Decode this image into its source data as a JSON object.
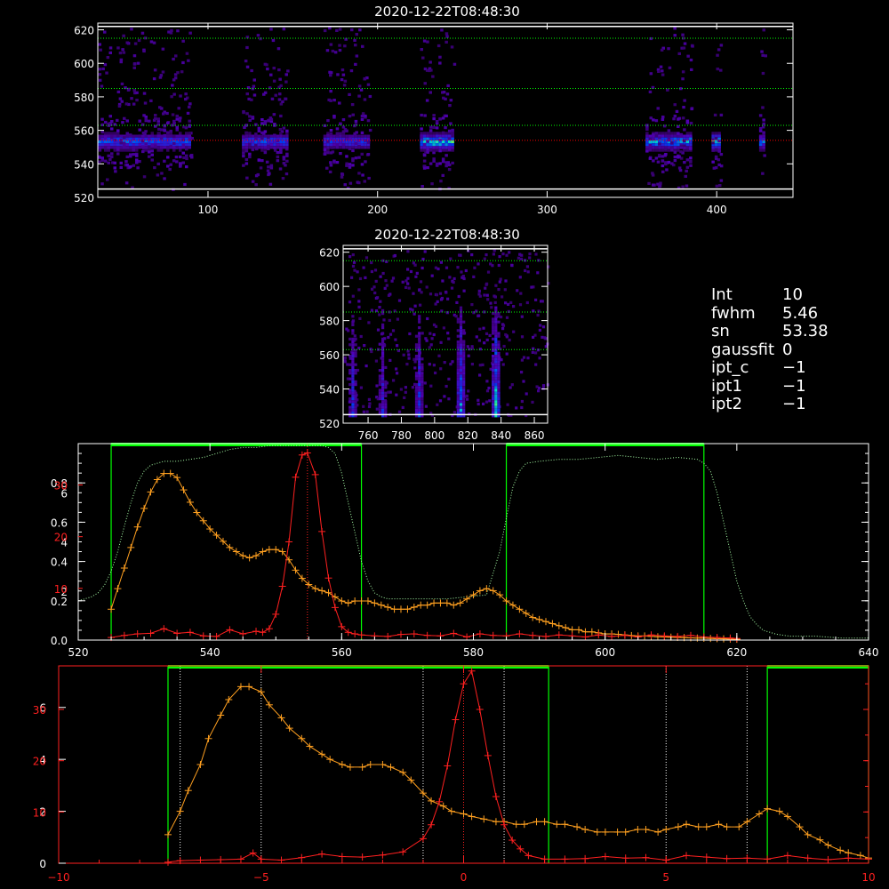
{
  "colors": {
    "background": "#000000",
    "axis": "#ffffff",
    "red": "#ff2020",
    "orange": "#ffa020",
    "green": "#00ff00",
    "light_green": "#a8ffa8"
  },
  "info_panel": {
    "items": [
      {
        "key": "Int",
        "value": "10"
      },
      {
        "key": "fwhm",
        "value": "5.46"
      },
      {
        "key": "sn",
        "value": "53.38"
      },
      {
        "key": "gaussfit",
        "value": "0"
      },
      {
        "key": "ipt_c",
        "value": "−1"
      },
      {
        "key": "ipt1",
        "value": "−1"
      },
      {
        "key": "ipt2",
        "value": "−1"
      }
    ]
  },
  "chart_data": [
    {
      "id": "image-top",
      "type": "heatmap",
      "title": "2020-12-22T08:48:30",
      "xlim": [
        35,
        445
      ],
      "ylim": [
        520,
        624
      ],
      "x_ticks": [
        100,
        200,
        300,
        400
      ],
      "y_ticks": [
        520,
        540,
        560,
        580,
        600,
        620
      ],
      "hlines": [
        {
          "y": 622,
          "color": "#ffffff",
          "style": "solid"
        },
        {
          "y": 525,
          "color": "#ffffff",
          "style": "solid"
        },
        {
          "y": 615,
          "color": "#00ff00",
          "style": "dotted"
        },
        {
          "y": 585,
          "color": "#00ff00",
          "style": "dotted"
        },
        {
          "y": 563,
          "color": "#00ff00",
          "style": "dotted"
        },
        {
          "y": 554,
          "color": "#ff0000",
          "style": "dotted"
        }
      ],
      "segments": [
        {
          "x": [
            35,
            90
          ],
          "intensity": 0.6
        },
        {
          "x": [
            120,
            147
          ],
          "intensity": 0.55
        },
        {
          "x": [
            168,
            195
          ],
          "intensity": 0.5
        },
        {
          "x": [
            225,
            245
          ],
          "intensity": 0.9
        },
        {
          "x": [
            358,
            385
          ],
          "intensity": 0.75
        },
        {
          "x": [
            397,
            402
          ],
          "intensity": 0.95
        },
        {
          "x": [
            425,
            428
          ],
          "intensity": 0.7
        }
      ]
    },
    {
      "id": "image-mid",
      "type": "heatmap",
      "title": "2020-12-22T08:48:30",
      "xlim": [
        745,
        868
      ],
      "ylim": [
        520,
        624
      ],
      "x_ticks": [
        760,
        780,
        800,
        820,
        840,
        860
      ],
      "y_ticks": [
        520,
        540,
        560,
        580,
        600,
        620
      ],
      "hlines": [
        {
          "y": 622,
          "color": "#ffffff",
          "style": "solid"
        },
        {
          "y": 525,
          "color": "#ffffff",
          "style": "solid"
        },
        {
          "y": 615,
          "color": "#00ff00",
          "style": "dotted"
        },
        {
          "y": 585,
          "color": "#00ff00",
          "style": "dotted"
        },
        {
          "y": 563,
          "color": "#00ff00",
          "style": "dotted"
        }
      ],
      "columns": [
        {
          "x": 750,
          "intensity": 0.55
        },
        {
          "x": 768,
          "intensity": 0.5
        },
        {
          "x": 790,
          "intensity": 0.6
        },
        {
          "x": 815,
          "intensity": 0.8
        },
        {
          "x": 836,
          "intensity": 0.95
        }
      ]
    },
    {
      "id": "spectrum-top",
      "type": "line",
      "xlim": [
        520,
        640
      ],
      "x_ticks": [
        520,
        540,
        560,
        580,
        600,
        620,
        640
      ],
      "y_ticks_white": [
        0.0,
        0.2,
        0.4,
        0.6,
        0.8
      ],
      "y_ticks_white_labels": [
        "0.0",
        "0.2",
        "0.4",
        "0.6",
        "0.8"
      ],
      "y_ticks_orange_labels": [
        "2",
        "4",
        "6"
      ],
      "y_ticks_orange_values": [
        2,
        4,
        6
      ],
      "y_ticks_red_labels": [
        "10",
        "20",
        "30"
      ],
      "y_ticks_red_values": [
        10,
        20,
        30
      ],
      "green_regions": [
        [
          525,
          563
        ],
        [
          585,
          615
        ]
      ],
      "red_dotted_x": 554.8,
      "series": [
        {
          "color": "orange",
          "x": [
            525,
            526,
            527,
            528,
            529,
            530,
            531,
            532,
            533,
            534,
            535,
            536,
            537,
            538,
            539,
            540,
            541,
            542,
            543,
            544,
            545,
            546,
            547,
            548,
            549,
            550,
            551,
            552,
            553,
            554,
            555,
            556,
            557,
            558,
            559,
            560,
            561,
            562,
            563,
            564,
            565,
            566,
            567,
            568,
            569,
            570,
            571,
            572,
            573,
            574,
            575,
            576,
            577,
            578,
            579,
            580,
            581,
            582,
            583,
            584,
            585,
            586,
            587,
            588,
            589,
            590,
            591,
            592,
            593,
            594,
            595,
            596,
            597,
            598,
            599,
            600,
            601,
            602,
            603,
            604,
            605,
            606,
            607,
            608,
            609,
            610,
            611,
            612,
            613,
            614,
            615,
            616,
            617,
            618,
            619,
            620
          ],
          "y": [
            0.15,
            0.25,
            0.35,
            0.45,
            0.55,
            0.64,
            0.72,
            0.78,
            0.81,
            0.81,
            0.79,
            0.73,
            0.67,
            0.62,
            0.58,
            0.54,
            0.51,
            0.48,
            0.45,
            0.43,
            0.41,
            0.4,
            0.41,
            0.43,
            0.44,
            0.44,
            0.43,
            0.39,
            0.34,
            0.3,
            0.27,
            0.25,
            0.24,
            0.23,
            0.21,
            0.19,
            0.18,
            0.19,
            0.19,
            0.19,
            0.18,
            0.17,
            0.16,
            0.15,
            0.15,
            0.15,
            0.16,
            0.17,
            0.17,
            0.18,
            0.18,
            0.18,
            0.17,
            0.18,
            0.2,
            0.22,
            0.24,
            0.25,
            0.24,
            0.22,
            0.19,
            0.17,
            0.15,
            0.13,
            0.11,
            0.1,
            0.09,
            0.08,
            0.07,
            0.06,
            0.05,
            0.05,
            0.04,
            0.04,
            0.035,
            0.03,
            0.03,
            0.028,
            0.025,
            0.022,
            0.02,
            0.02,
            0.018,
            0.016,
            0.015,
            0.014,
            0.013,
            0.012,
            0.011,
            0.01,
            0.009,
            0.008,
            0.007,
            0.006,
            0.005,
            0.004
          ]
        },
        {
          "color": "red",
          "x": [
            525,
            527,
            529,
            531,
            533,
            535,
            537,
            539,
            541,
            543,
            545,
            547,
            548,
            549,
            550,
            551,
            552,
            553,
            554,
            554.8,
            556,
            557,
            558,
            559,
            560,
            561,
            562,
            563,
            565,
            567,
            569,
            571,
            573,
            575,
            577,
            579,
            581,
            583,
            585,
            587,
            589,
            591,
            593,
            595,
            597,
            599,
            601,
            603,
            605,
            607,
            609,
            611,
            613,
            615,
            617,
            619,
            620
          ],
          "y": [
            0.5,
            0.9,
            1.2,
            1.3,
            2.2,
            1.3,
            1.5,
            0.8,
            0.7,
            2.0,
            1.2,
            1.7,
            1.5,
            2.2,
            5.0,
            10.4,
            19.0,
            31.5,
            35.8,
            36.2,
            32.0,
            21.0,
            12.0,
            6.3,
            2.6,
            1.5,
            1.2,
            1.0,
            0.8,
            0.7,
            1.1,
            1.2,
            0.9,
            0.8,
            1.3,
            0.6,
            1.2,
            0.9,
            0.8,
            1.2,
            0.9,
            0.7,
            1.0,
            0.8,
            0.6,
            1.0,
            0.7,
            0.9,
            0.6,
            1.0,
            0.8,
            0.7,
            0.9,
            0.6,
            0.5,
            0.4,
            0.3
          ]
        },
        {
          "color": "light_green",
          "style": "dotted",
          "x": [
            520,
            522,
            523,
            524,
            525,
            526,
            527,
            528,
            529,
            530,
            531,
            532,
            533,
            534,
            535,
            537,
            539,
            541,
            543,
            545,
            547,
            549,
            551,
            553,
            555,
            557,
            558,
            559,
            560,
            561,
            562,
            563,
            564,
            565,
            566,
            567,
            568,
            570,
            573,
            576,
            579,
            582,
            584,
            585,
            586,
            587,
            588,
            590,
            593,
            596,
            599,
            602,
            605,
            608,
            611,
            614,
            615,
            616,
            617,
            618,
            619,
            620,
            621,
            622,
            623,
            624,
            626,
            628,
            632,
            636,
            640
          ],
          "y": [
            0.2,
            0.22,
            0.24,
            0.28,
            0.35,
            0.45,
            0.58,
            0.7,
            0.8,
            0.86,
            0.89,
            0.9,
            0.91,
            0.91,
            0.91,
            0.92,
            0.93,
            0.95,
            0.97,
            0.98,
            0.98,
            0.99,
            0.99,
            0.99,
            0.99,
            0.99,
            0.98,
            0.95,
            0.85,
            0.7,
            0.55,
            0.4,
            0.3,
            0.24,
            0.22,
            0.21,
            0.21,
            0.21,
            0.21,
            0.21,
            0.22,
            0.23,
            0.45,
            0.62,
            0.78,
            0.86,
            0.9,
            0.91,
            0.92,
            0.92,
            0.93,
            0.94,
            0.93,
            0.92,
            0.93,
            0.92,
            0.9,
            0.86,
            0.75,
            0.6,
            0.45,
            0.3,
            0.2,
            0.12,
            0.08,
            0.05,
            0.03,
            0.02,
            0.02,
            0.01,
            0.01
          ]
        }
      ]
    },
    {
      "id": "spectrum-bottom",
      "type": "line",
      "xlim": [
        -10,
        10
      ],
      "x_ticks": [
        -10,
        -5,
        0,
        5,
        10
      ],
      "x_tick_labels": [
        "−10",
        "−5",
        "0",
        "5",
        "10"
      ],
      "y_ticks_white_labels": [
        "0",
        "2",
        "4",
        "6"
      ],
      "y_ticks_white_values": [
        0,
        2,
        4,
        6
      ],
      "y_ticks_red_labels": [
        "10",
        "20",
        "30"
      ],
      "y_ticks_red_values": [
        10,
        20,
        30
      ],
      "green_regions": [
        [
          -7.3,
          2.1
        ],
        [
          7.5,
          10.0
        ]
      ],
      "white_dotted_x": [
        -7.0,
        -5.0,
        -1.0,
        1.0,
        5.0,
        7.0
      ],
      "red_dotted_x": 0.0,
      "series": [
        {
          "color": "orange",
          "x": [
            -7.3,
            -7.0,
            -6.8,
            -6.5,
            -6.3,
            -6.0,
            -5.8,
            -5.5,
            -5.3,
            -5.0,
            -4.8,
            -4.5,
            -4.3,
            -4.0,
            -3.8,
            -3.5,
            -3.3,
            -3.0,
            -2.8,
            -2.5,
            -2.3,
            -2.0,
            -1.8,
            -1.5,
            -1.3,
            -1.0,
            -0.8,
            -0.5,
            -0.3,
            0.0,
            0.2,
            0.5,
            0.8,
            1.0,
            1.3,
            1.5,
            1.8,
            2.0,
            2.3,
            2.5,
            2.8,
            3.0,
            3.3,
            3.5,
            3.8,
            4.0,
            4.3,
            4.5,
            4.8,
            5.0,
            5.3,
            5.5,
            5.8,
            6.0,
            6.3,
            6.5,
            6.8,
            7.0,
            7.3,
            7.5,
            7.8,
            8.0,
            8.3,
            8.5,
            8.8,
            9.0,
            9.3,
            9.5,
            9.8,
            10.0
          ],
          "y": [
            1.1,
            2.0,
            2.8,
            3.8,
            4.8,
            5.7,
            6.3,
            6.8,
            6.8,
            6.6,
            6.1,
            5.6,
            5.2,
            4.8,
            4.5,
            4.2,
            4.0,
            3.8,
            3.7,
            3.7,
            3.8,
            3.8,
            3.7,
            3.5,
            3.2,
            2.7,
            2.4,
            2.2,
            2.0,
            1.9,
            1.8,
            1.7,
            1.6,
            1.6,
            1.5,
            1.5,
            1.6,
            1.6,
            1.5,
            1.5,
            1.4,
            1.3,
            1.2,
            1.2,
            1.2,
            1.2,
            1.3,
            1.3,
            1.2,
            1.3,
            1.4,
            1.5,
            1.4,
            1.4,
            1.5,
            1.4,
            1.4,
            1.6,
            1.9,
            2.1,
            2.0,
            1.8,
            1.4,
            1.1,
            0.9,
            0.7,
            0.5,
            0.4,
            0.3,
            0.2
          ]
        },
        {
          "color": "red",
          "x": [
            -7.3,
            -7.0,
            -6.5,
            -6.0,
            -5.5,
            -5.2,
            -5.0,
            -4.5,
            -4.0,
            -3.5,
            -3.0,
            -2.5,
            -2.0,
            -1.5,
            -1.0,
            -0.8,
            -0.6,
            -0.4,
            -0.2,
            0.0,
            0.2,
            0.4,
            0.6,
            0.8,
            1.0,
            1.2,
            1.4,
            1.6,
            2.0,
            2.5,
            3.0,
            3.5,
            4.0,
            4.5,
            5.0,
            5.5,
            6.0,
            6.5,
            7.0,
            7.5,
            8.0,
            8.5,
            9.0,
            9.5,
            10.0
          ],
          "y": [
            0.2,
            0.5,
            0.6,
            0.7,
            0.8,
            2.0,
            0.8,
            0.6,
            1.1,
            1.8,
            1.3,
            1.2,
            1.6,
            2.2,
            4.8,
            7.5,
            12.0,
            19.0,
            28.0,
            35.0,
            37.5,
            30.0,
            21.0,
            13.0,
            7.5,
            4.5,
            2.8,
            1.5,
            0.8,
            0.8,
            0.9,
            1.3,
            1.0,
            1.1,
            0.6,
            1.5,
            1.2,
            0.9,
            1.0,
            0.8,
            1.5,
            1.0,
            0.7,
            1.0,
            0.8
          ]
        }
      ]
    }
  ]
}
